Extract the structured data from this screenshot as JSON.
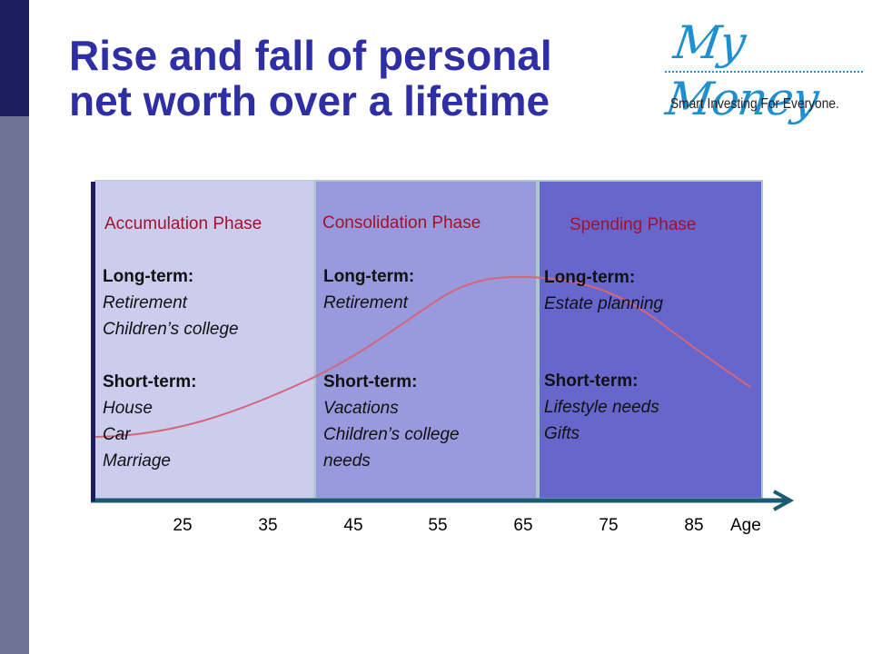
{
  "title": {
    "line1": "Rise and fall of personal",
    "line2": "net worth over a lifetime"
  },
  "logo": {
    "mark": "My Money",
    "tagline": "Smart Investing For Everyone."
  },
  "colors": {
    "title": "#2f2fa5",
    "phase_name": "#a8102a",
    "accumulation_bg": "#ccccee",
    "consolidation_bg": "#9999dd",
    "spending_bg": "#6666cc",
    "curve": "#d4667a",
    "axis": "#1c1f5e",
    "logo": "#1e8fd0"
  },
  "phases": [
    {
      "name": "Accumulation Phase",
      "long_term_label": "Long-term:",
      "long_term": [
        "Retirement",
        "Children’s college"
      ],
      "short_term_label": "Short-term:",
      "short_term": [
        "House",
        "Car",
        "Marriage"
      ]
    },
    {
      "name": "Consolidation Phase",
      "long_term_label": "Long-term:",
      "long_term": [
        "Retirement"
      ],
      "short_term_label": "Short-term:",
      "short_term": [
        "Vacations",
        "Children’s college",
        "needs"
      ]
    },
    {
      "name": "Spending Phase",
      "long_term_label": "Long-term:",
      "long_term": [
        "Estate planning"
      ],
      "short_term_label": "Short-term:",
      "short_term": [
        "Lifestyle needs",
        "Gifts"
      ]
    }
  ],
  "x_axis": {
    "title": "Age",
    "ticks": [
      25,
      35,
      45,
      55,
      65,
      75,
      85
    ]
  }
}
